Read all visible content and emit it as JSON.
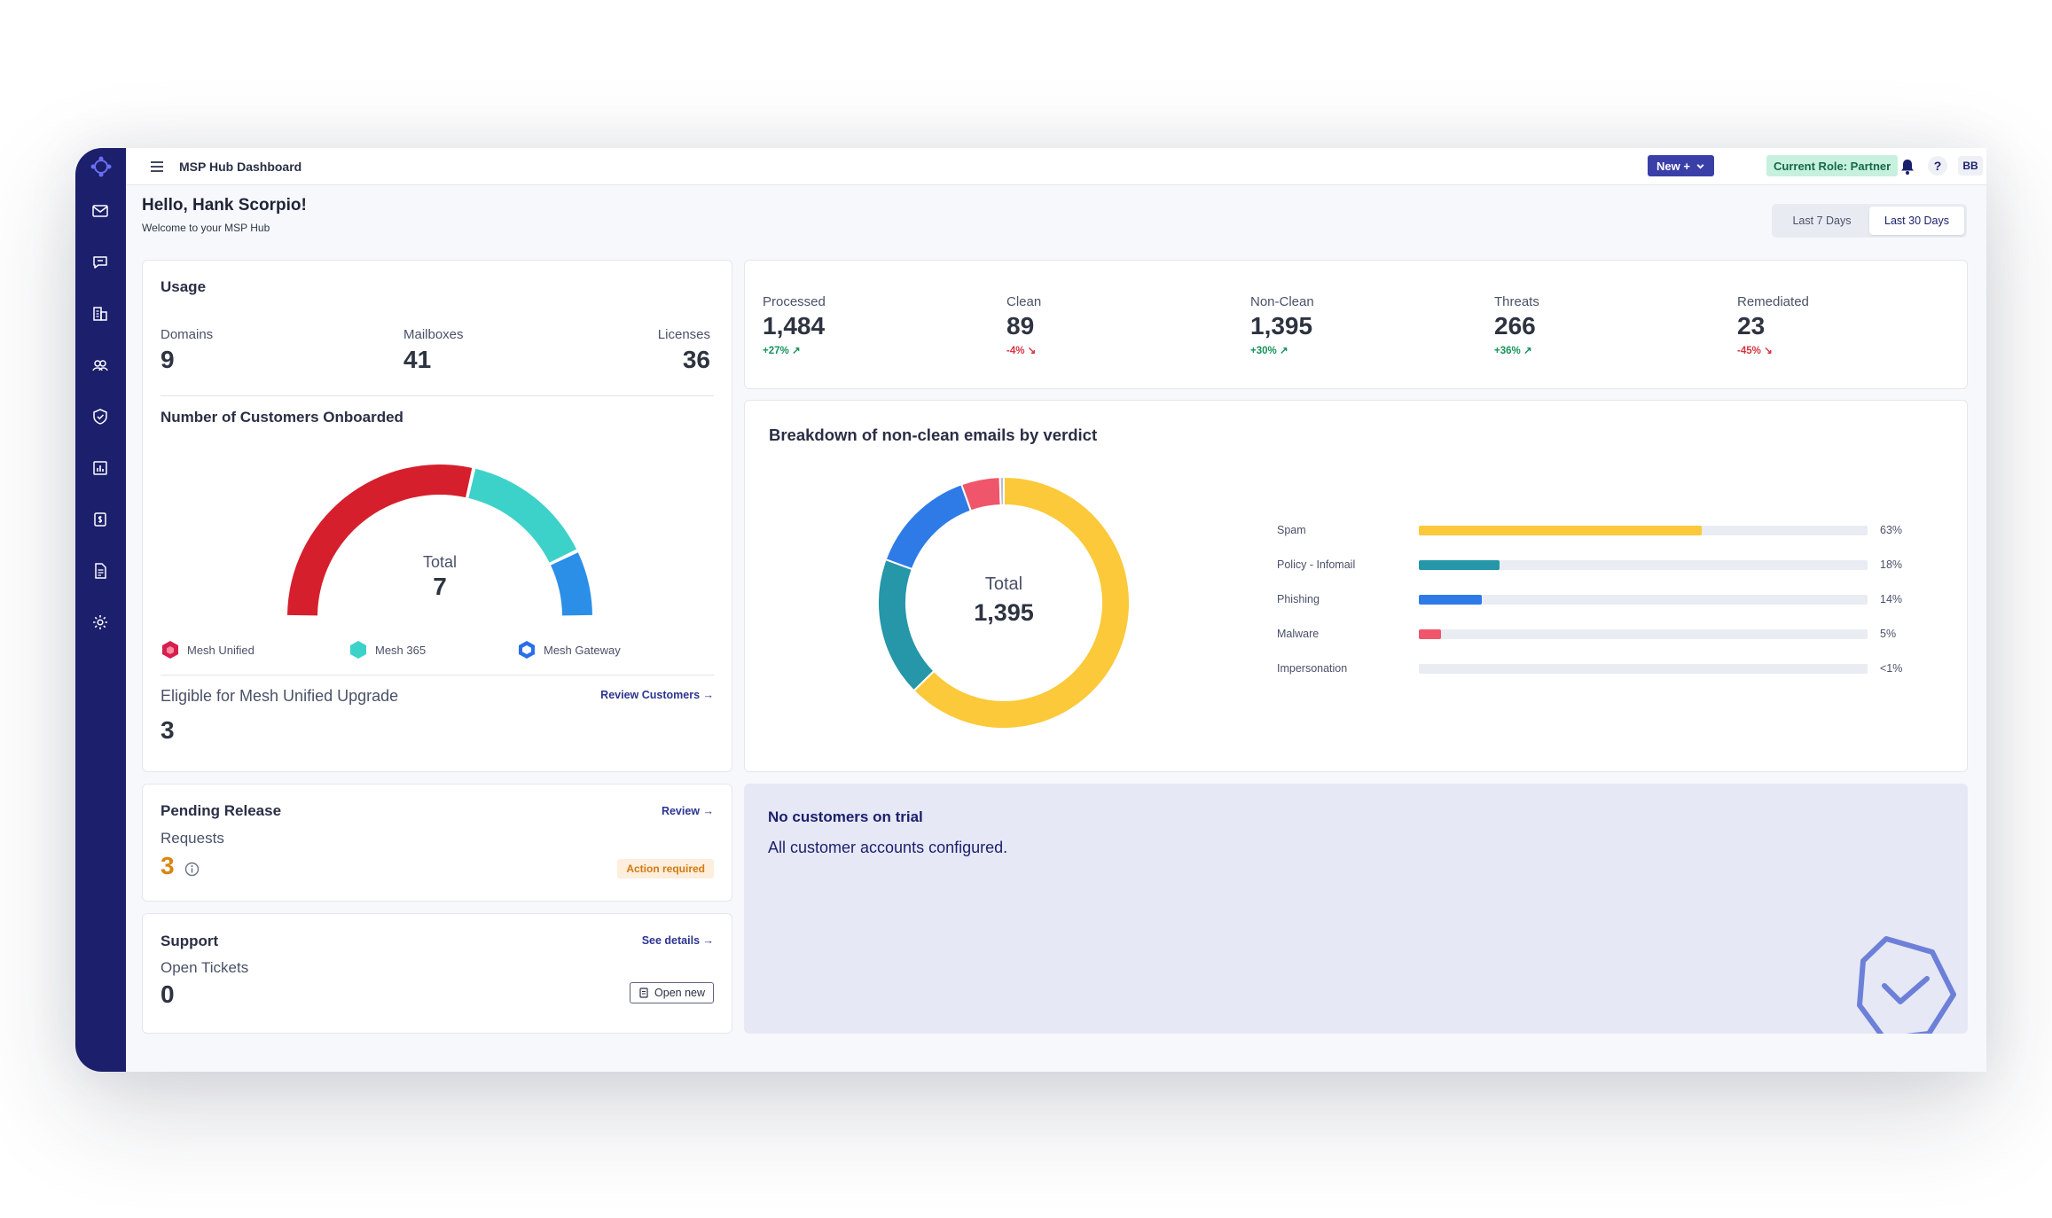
{
  "topbar": {
    "title": "MSP Hub Dashboard",
    "new_label": "New +",
    "role_label": "Current Role: Partner",
    "help_label": "?",
    "avatar_initials": "BB"
  },
  "sidebar": {
    "icons": [
      "mail-icon",
      "chat-icon",
      "building-icon",
      "users-icon",
      "shield-icon",
      "chart-icon",
      "billing-icon",
      "document-icon",
      "gear-icon"
    ]
  },
  "header": {
    "greeting": "Hello, Hank Scorpio!",
    "subtitle": "Welcome to your MSP Hub",
    "ranges": [
      "Last 7 Days",
      "Last 30 Days"
    ],
    "active_range": "Last 30 Days"
  },
  "usage": {
    "title": "Usage",
    "domains_label": "Domains",
    "domains_value": "9",
    "mailboxes_label": "Mailboxes",
    "mailboxes_value": "41",
    "licenses_label": "Licenses",
    "licenses_value": "36",
    "onboarded_title": "Number of Customers Onboarded",
    "total_label": "Total",
    "total_value": "7",
    "legend": [
      "Mesh Unified",
      "Mesh 365",
      "Mesh Gateway"
    ],
    "eligible_label": "Eligible for Mesh Unified Upgrade",
    "eligible_value": "3",
    "review_customers_label": "Review Customers →"
  },
  "onboarded_chart": {
    "type": "pie",
    "segments": [
      {
        "name": "Mesh Unified",
        "value": 4,
        "color": "#d61f2c"
      },
      {
        "name": "Mesh 365",
        "value": 2,
        "color": "#3dd2c9"
      },
      {
        "name": "Mesh Gateway",
        "value": 1,
        "color": "#2b8fe8"
      }
    ]
  },
  "stats": [
    {
      "label": "Processed",
      "value": "1,484",
      "delta": "+27%",
      "direction": "up"
    },
    {
      "label": "Clean",
      "value": "89",
      "delta": "-4%",
      "direction": "down"
    },
    {
      "label": "Non-Clean",
      "value": "1,395",
      "delta": "+30%",
      "direction": "up"
    },
    {
      "label": "Threats",
      "value": "266",
      "delta": "+36%",
      "direction": "up"
    },
    {
      "label": "Remediated",
      "value": "23",
      "delta": "-45%",
      "direction": "down"
    }
  ],
  "breakdown": {
    "title": "Breakdown of non-clean emails by verdict",
    "total_label": "Total",
    "total_value": "1,395"
  },
  "chart_data": {
    "type": "pie",
    "title": "Breakdown of non-clean emails by verdict",
    "categories": [
      "Spam",
      "Policy - Infomail",
      "Phishing",
      "Malware",
      "Impersonation"
    ],
    "values": [
      63,
      18,
      14,
      5,
      0.5
    ],
    "labels": [
      "63%",
      "18%",
      "14%",
      "5%",
      "<1%"
    ],
    "colors": [
      "#fbc93a",
      "#2597a8",
      "#2e7be8",
      "#f0566b",
      "#b9bfd0"
    ]
  },
  "pending": {
    "title": "Pending Release",
    "review_label": "Review →",
    "requests_label": "Requests",
    "requests_value": "3",
    "action_label": "Action required"
  },
  "support": {
    "title": "Support",
    "details_label": "See details →",
    "tickets_label": "Open Tickets",
    "tickets_value": "0",
    "open_new_label": "Open new"
  },
  "trial": {
    "title": "No customers on trial",
    "subtitle": "All customer accounts configured."
  }
}
